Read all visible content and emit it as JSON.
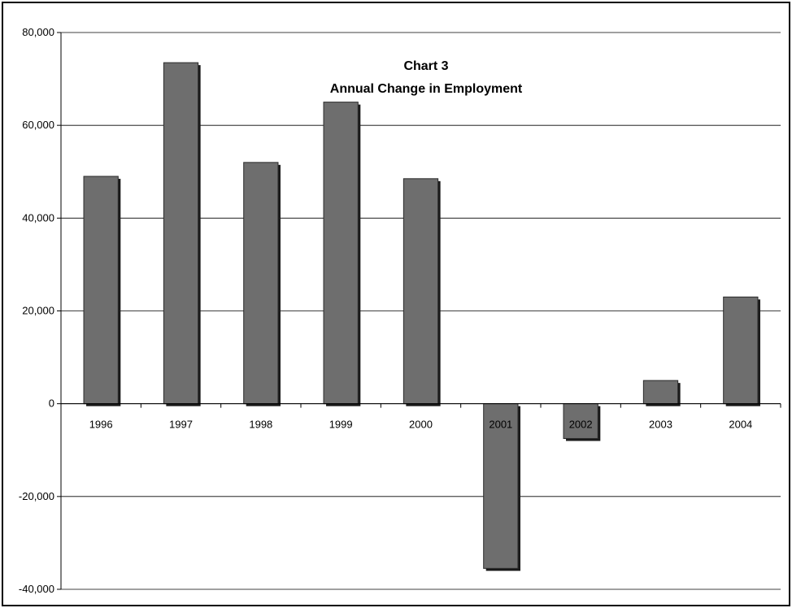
{
  "chart_data": {
    "type": "bar",
    "title": "Chart 3",
    "subtitle": "Annual Change in Employment",
    "categories": [
      "1996",
      "1997",
      "1998",
      "1999",
      "2000",
      "2001",
      "2002",
      "2003",
      "2004"
    ],
    "values": [
      49000,
      73500,
      52000,
      65000,
      48500,
      -35500,
      -7500,
      5000,
      23000
    ],
    "ylim": [
      -40000,
      80000
    ],
    "yticks": [
      80000,
      60000,
      40000,
      20000,
      0,
      -20000,
      -40000
    ],
    "ytick_labels": [
      "80,000",
      "60,000",
      "40,000",
      "20,000",
      "0",
      "-20,000",
      "-40,000"
    ],
    "grid": true,
    "bar_color": "#6e6e6e",
    "xlabel": "",
    "ylabel": ""
  }
}
